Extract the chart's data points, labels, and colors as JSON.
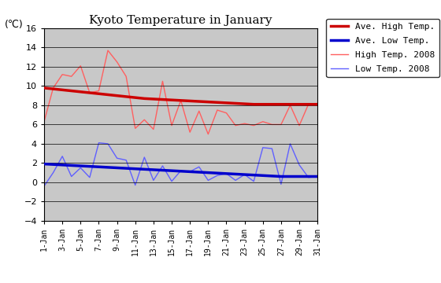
{
  "title": "Kyoto Temperature in January",
  "ylabel": "(℃)",
  "background_color": "#c8c8c8",
  "fig_facecolor": "#ffffff",
  "ylim": [
    -4,
    16
  ],
  "yticks": [
    -4,
    -2,
    0,
    2,
    4,
    6,
    8,
    10,
    12,
    14,
    16
  ],
  "days": [
    1,
    2,
    3,
    4,
    5,
    6,
    7,
    8,
    9,
    10,
    11,
    12,
    13,
    14,
    15,
    16,
    17,
    18,
    19,
    20,
    21,
    22,
    23,
    24,
    25,
    26,
    27,
    28,
    29,
    30,
    31
  ],
  "xtick_labels": [
    "1-Jan",
    "3-Jan",
    "5-Jan",
    "7-Jan",
    "9-Jan",
    "11-Jan",
    "13-Jan",
    "15-Jan",
    "17-Jan",
    "19-Jan",
    "21-Jan",
    "23-Jan",
    "25-Jan",
    "27-Jan",
    "29-Jan",
    "31-Jan"
  ],
  "xtick_positions": [
    1,
    3,
    5,
    7,
    9,
    11,
    13,
    15,
    17,
    19,
    21,
    23,
    25,
    27,
    29,
    31
  ],
  "ave_high": [
    9.8,
    9.7,
    9.6,
    9.5,
    9.4,
    9.3,
    9.2,
    9.1,
    9.0,
    8.9,
    8.8,
    8.7,
    8.65,
    8.6,
    8.55,
    8.5,
    8.45,
    8.4,
    8.35,
    8.3,
    8.25,
    8.2,
    8.15,
    8.1,
    8.1,
    8.1,
    8.1,
    8.1,
    8.1,
    8.1,
    8.1
  ],
  "ave_low": [
    1.9,
    1.85,
    1.8,
    1.75,
    1.7,
    1.65,
    1.6,
    1.55,
    1.5,
    1.45,
    1.4,
    1.35,
    1.3,
    1.25,
    1.2,
    1.15,
    1.1,
    1.05,
    1.0,
    0.95,
    0.9,
    0.85,
    0.8,
    0.75,
    0.7,
    0.65,
    0.6,
    0.6,
    0.6,
    0.6,
    0.6
  ],
  "high_2008": [
    6.3,
    9.8,
    11.2,
    11.0,
    12.1,
    9.3,
    9.5,
    13.7,
    12.5,
    11.0,
    5.6,
    6.5,
    5.5,
    10.5,
    5.9,
    8.5,
    5.2,
    7.4,
    5.0,
    7.5,
    7.2,
    5.9,
    6.1,
    5.9,
    6.3,
    6.0,
    6.0,
    8.0,
    5.9,
    8.1,
    8.2
  ],
  "low_2008": [
    -0.4,
    1.0,
    2.7,
    0.6,
    1.5,
    0.5,
    4.1,
    4.0,
    2.5,
    2.3,
    -0.3,
    2.6,
    0.2,
    1.7,
    0.1,
    1.2,
    1.1,
    1.6,
    0.2,
    0.7,
    0.9,
    0.2,
    0.8,
    0.1,
    3.6,
    3.5,
    -0.2,
    4.0,
    1.8,
    0.5,
    0.6
  ],
  "ave_high_color": "#cc0000",
  "ave_low_color": "#0000cc",
  "high_2008_color": "#ff6060",
  "low_2008_color": "#6060ff",
  "ave_high_lw": 2.5,
  "ave_low_lw": 2.5,
  "high_2008_lw": 1.0,
  "low_2008_lw": 1.0,
  "title_fontsize": 11,
  "tick_fontsize": 8,
  "legend_fontsize": 8
}
